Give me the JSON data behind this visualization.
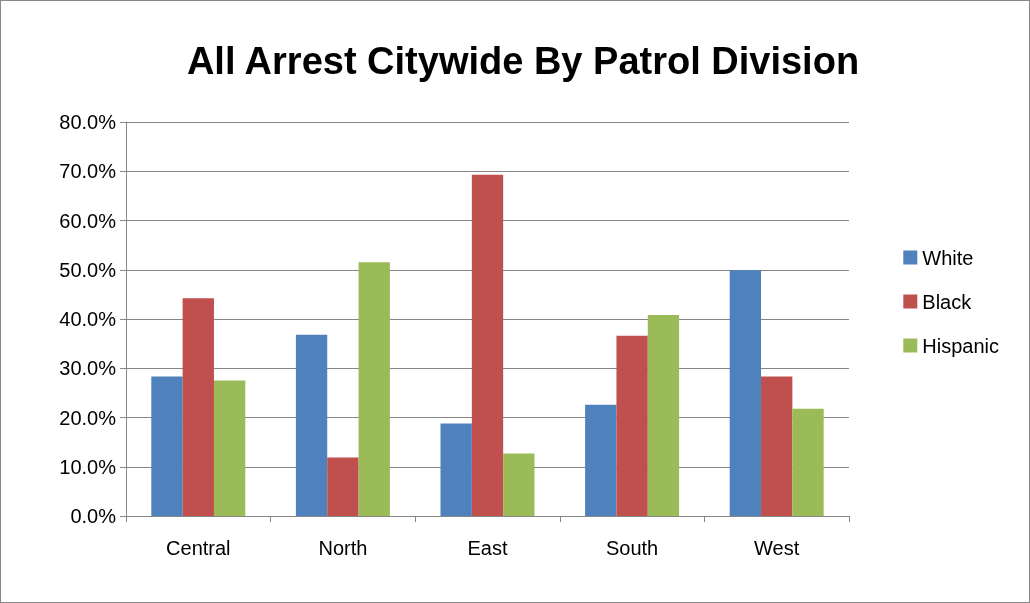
{
  "chart_data": {
    "type": "bar",
    "title": "All Arrest Citywide By Patrol Division",
    "categories": [
      "Central",
      "North",
      "East",
      "South",
      "West"
    ],
    "series": [
      {
        "name": "White",
        "color": "#4f81bd",
        "values": [
          28.3,
          36.8,
          18.8,
          22.6,
          49.9
        ]
      },
      {
        "name": "Black",
        "color": "#c0504d",
        "values": [
          44.2,
          11.9,
          69.3,
          36.6,
          28.3
        ]
      },
      {
        "name": "Hispanic",
        "color": "#9bbb59",
        "values": [
          27.5,
          51.5,
          12.7,
          40.8,
          21.8
        ]
      }
    ],
    "ylim": [
      0,
      80
    ],
    "yticks": [
      {
        "value": 0,
        "label": "0.0%"
      },
      {
        "value": 10,
        "label": "10.0%"
      },
      {
        "value": 20,
        "label": "20.0%"
      },
      {
        "value": 30,
        "label": "30.0%"
      },
      {
        "value": 40,
        "label": "40.0%"
      },
      {
        "value": 50,
        "label": "50.0%"
      },
      {
        "value": 60,
        "label": "60.0%"
      },
      {
        "value": 70,
        "label": "70.0%"
      },
      {
        "value": 80,
        "label": "80.0%"
      }
    ],
    "grid": "y",
    "legend": "right"
  }
}
